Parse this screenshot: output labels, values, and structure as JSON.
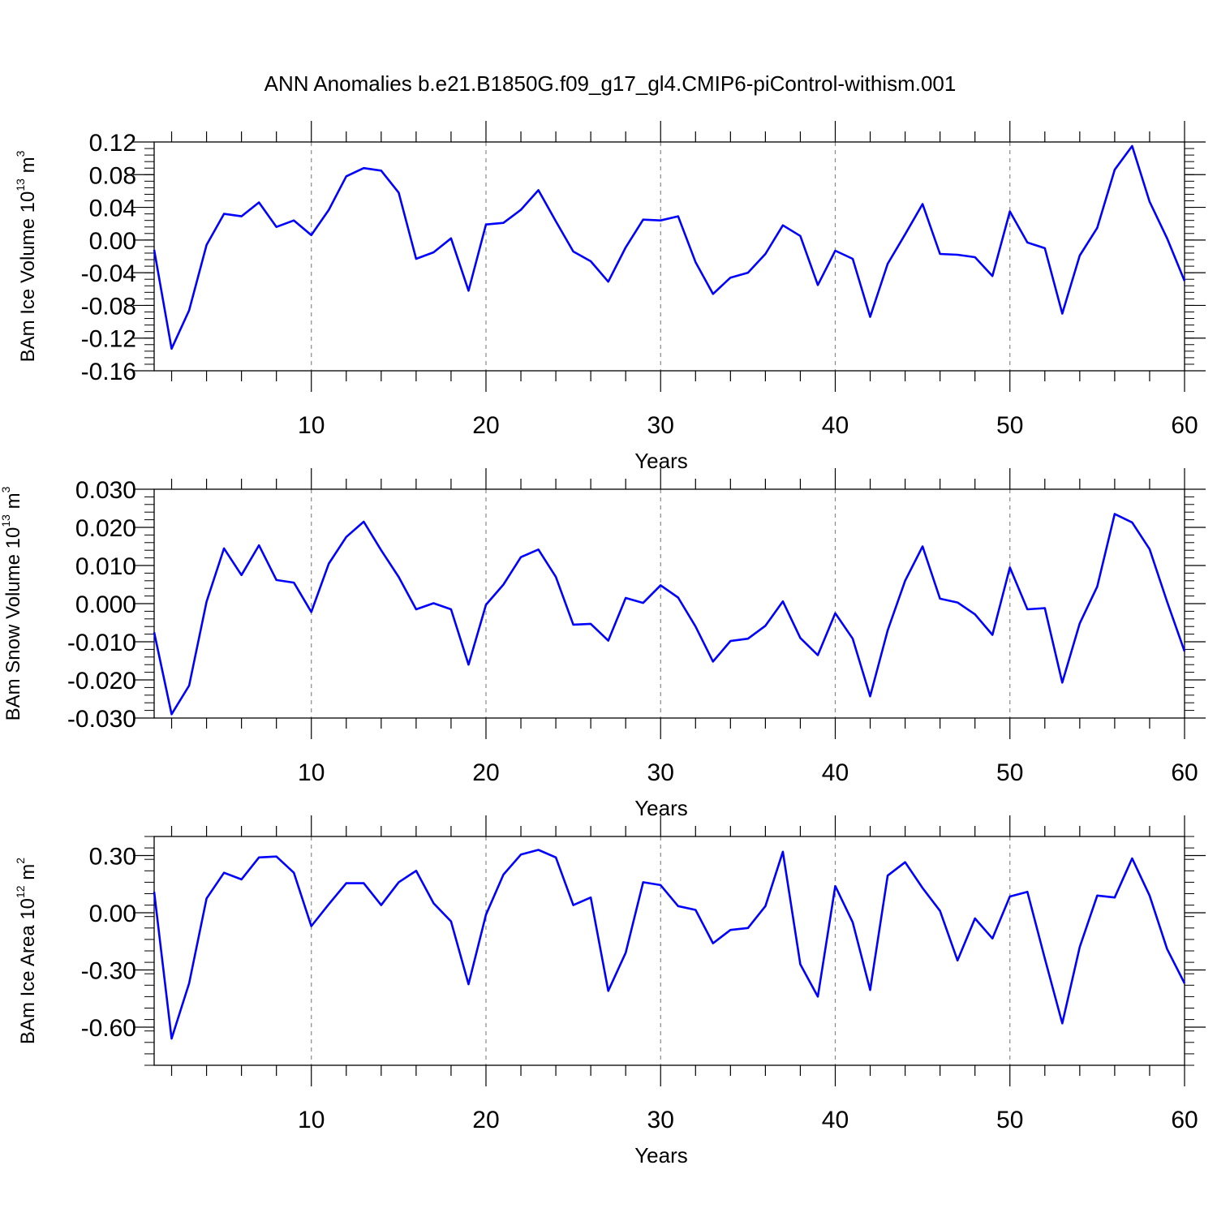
{
  "title": "ANN Anomalies b.e21.B1850G.f09_g17_gl4.CMIP6-piControl-withism.001",
  "colors": {
    "line": "#0000ff",
    "axis": "#000000",
    "grid": "#888888"
  },
  "chart_data": [
    {
      "type": "line",
      "ylabel": {
        "text": "BAm Ice Volume 10",
        "sup": "13",
        "unit": " m",
        "unit_sup": "3"
      },
      "xlabel": "Years",
      "xlim": [
        1,
        60
      ],
      "xticks": [
        10,
        20,
        30,
        40,
        50,
        60
      ],
      "ylim": [
        -0.16,
        0.12
      ],
      "yticks": [
        "-0.16",
        "-0.12",
        "-0.08",
        "-0.04",
        "0.00",
        "0.04",
        "0.08",
        "0.12"
      ],
      "grid_x": true,
      "x": [
        1,
        2,
        3,
        4,
        5,
        6,
        7,
        8,
        9,
        10,
        11,
        12,
        13,
        14,
        15,
        16,
        17,
        18,
        19,
        20,
        21,
        22,
        23,
        24,
        25,
        26,
        27,
        28,
        29,
        30,
        31,
        32,
        33,
        34,
        35,
        36,
        37,
        38,
        39,
        40,
        41,
        42,
        43,
        44,
        45,
        46,
        47,
        48,
        49,
        50,
        51,
        52,
        53,
        54,
        55,
        56,
        57,
        58,
        59,
        60
      ],
      "series": [
        {
          "values": [
            -0.012,
            -0.133,
            -0.086,
            -0.006,
            0.032,
            0.029,
            0.046,
            0.016,
            0.024,
            0.006,
            0.037,
            0.078,
            0.088,
            0.085,
            0.058,
            -0.023,
            -0.015,
            0.002,
            -0.062,
            0.019,
            0.021,
            0.037,
            0.061,
            0.023,
            -0.014,
            -0.026,
            -0.051,
            -0.009,
            0.025,
            0.024,
            0.029,
            -0.027,
            -0.066,
            -0.046,
            -0.04,
            -0.017,
            0.018,
            0.005,
            -0.055,
            -0.013,
            -0.023,
            -0.094,
            -0.029,
            0.007,
            0.044,
            -0.017,
            -0.018,
            -0.021,
            -0.044,
            0.035,
            -0.003,
            -0.01,
            -0.09,
            -0.019,
            0.015,
            0.086,
            0.115,
            0.047,
            0.002,
            -0.05
          ]
        }
      ]
    },
    {
      "type": "line",
      "ylabel": {
        "text": "BAm Snow Volume 10",
        "sup": "13",
        "unit": " m",
        "unit_sup": "3"
      },
      "xlabel": "Years",
      "xlim": [
        1,
        60
      ],
      "xticks": [
        10,
        20,
        30,
        40,
        50,
        60
      ],
      "ylim": [
        -0.03,
        0.03
      ],
      "yticks": [
        "-0.030",
        "-0.020",
        "-0.010",
        "0.000",
        "0.010",
        "0.020",
        "0.030"
      ],
      "grid_x": true,
      "x": [
        1,
        2,
        3,
        4,
        5,
        6,
        7,
        8,
        9,
        10,
        11,
        12,
        13,
        14,
        15,
        16,
        17,
        18,
        19,
        20,
        21,
        22,
        23,
        24,
        25,
        26,
        27,
        28,
        29,
        30,
        31,
        32,
        33,
        34,
        35,
        36,
        37,
        38,
        39,
        40,
        41,
        42,
        43,
        44,
        45,
        46,
        47,
        48,
        49,
        50,
        51,
        52,
        53,
        54,
        55,
        56,
        57,
        58,
        59,
        60
      ],
      "series": [
        {
          "values": [
            -0.0075,
            -0.029,
            -0.0215,
            0.0005,
            0.0145,
            0.0075,
            0.0153,
            0.0062,
            0.0055,
            -0.0022,
            0.0105,
            0.0175,
            0.0215,
            0.014,
            0.007,
            -0.0015,
            0.0001,
            -0.0015,
            -0.016,
            -0.0003,
            0.005,
            0.0122,
            0.0142,
            0.007,
            -0.0055,
            -0.0053,
            -0.0097,
            0.0015,
            0.0002,
            0.0048,
            0.0016,
            -0.006,
            -0.0152,
            -0.0098,
            -0.0092,
            -0.0058,
            0.0006,
            -0.009,
            -0.0135,
            -0.0025,
            -0.0092,
            -0.0243,
            -0.007,
            0.006,
            0.015,
            0.0013,
            0.0003,
            -0.0028,
            -0.0082,
            0.0095,
            -0.0015,
            -0.0012,
            -0.0207,
            -0.0052,
            0.0045,
            0.0235,
            0.0213,
            0.0143,
            0.0005,
            -0.0125
          ]
        }
      ]
    },
    {
      "type": "line",
      "ylabel": {
        "text": "BAm Ice Area 10",
        "sup": "12",
        "unit": " m",
        "unit_sup": "2"
      },
      "xlabel": "Years",
      "xlim": [
        1,
        60
      ],
      "xticks": [
        10,
        20,
        30,
        40,
        50,
        60
      ],
      "ylim": [
        -0.8,
        0.4
      ],
      "yticks": [
        "-0.60",
        "-0.30",
        "0.00",
        "0.30"
      ],
      "grid_x": true,
      "x": [
        1,
        2,
        3,
        4,
        5,
        6,
        7,
        8,
        9,
        10,
        11,
        12,
        13,
        14,
        15,
        16,
        17,
        18,
        19,
        20,
        21,
        22,
        23,
        24,
        25,
        26,
        27,
        28,
        29,
        30,
        31,
        32,
        33,
        34,
        35,
        36,
        37,
        38,
        39,
        40,
        41,
        42,
        43,
        44,
        45,
        46,
        47,
        48,
        49,
        50,
        51,
        52,
        53,
        54,
        55,
        56,
        57,
        58,
        59,
        60
      ],
      "series": [
        {
          "values": [
            0.11,
            -0.66,
            -0.37,
            0.075,
            0.21,
            0.175,
            0.29,
            0.295,
            0.21,
            -0.07,
            0.045,
            0.155,
            0.155,
            0.04,
            0.16,
            0.22,
            0.05,
            -0.045,
            -0.375,
            -0.01,
            0.2,
            0.305,
            0.33,
            0.29,
            0.04,
            0.08,
            -0.41,
            -0.21,
            0.16,
            0.145,
            0.035,
            0.015,
            -0.16,
            -0.09,
            -0.08,
            0.035,
            0.32,
            -0.27,
            -0.44,
            0.14,
            -0.05,
            -0.405,
            0.195,
            0.265,
            0.13,
            0.01,
            -0.25,
            -0.03,
            -0.135,
            0.085,
            0.11,
            -0.24,
            -0.58,
            -0.18,
            0.09,
            0.08,
            0.285,
            0.09,
            -0.19,
            -0.37
          ]
        }
      ]
    }
  ]
}
